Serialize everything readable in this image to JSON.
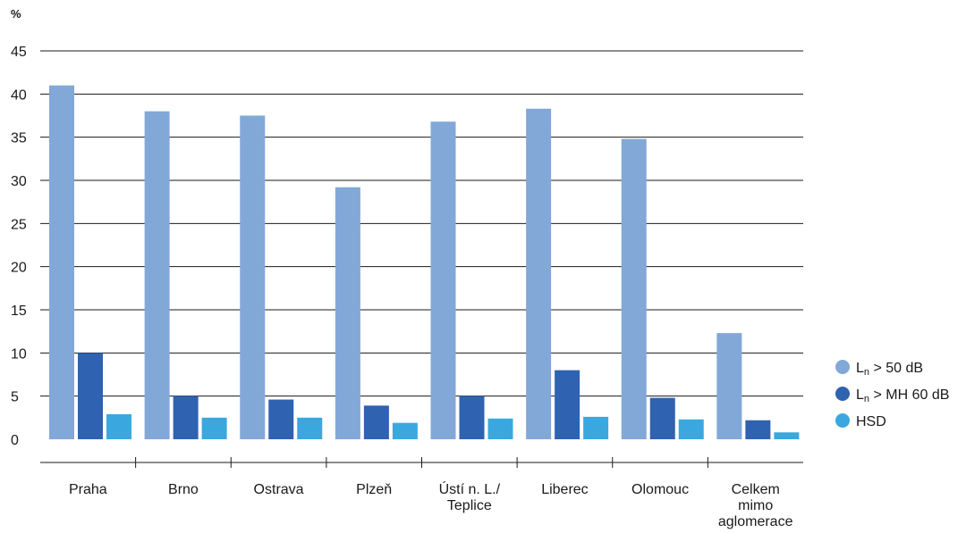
{
  "chart_data": {
    "type": "bar",
    "title": "",
    "xlabel": "",
    "ylabel": "%",
    "ylim": [
      0,
      45
    ],
    "yticks": [
      0,
      5,
      10,
      15,
      20,
      25,
      30,
      35,
      40,
      45
    ],
    "grid": true,
    "legend_position": "right",
    "categories": [
      [
        "Praha"
      ],
      [
        "Brno"
      ],
      [
        "Ostrava"
      ],
      [
        "Plzeň"
      ],
      [
        "Ústí n. L./",
        "Teplice"
      ],
      [
        "Liberec"
      ],
      [
        "Olomouc"
      ],
      [
        "Celkem",
        "mimo",
        "aglomerace"
      ]
    ],
    "series": [
      {
        "name": "Ln > 50 dB",
        "legend_base": "L",
        "legend_sub": "n",
        "legend_rest": " > 50 dB",
        "color": "#82a8d8",
        "values": [
          41.0,
          38.0,
          37.5,
          29.2,
          36.8,
          38.3,
          34.8,
          12.3
        ]
      },
      {
        "name": "Ln > MH 60 dB",
        "legend_base": "L",
        "legend_sub": "n",
        "legend_rest": " > MH 60 dB",
        "color": "#2f62b0",
        "values": [
          10.0,
          5.0,
          4.6,
          3.9,
          5.0,
          8.0,
          4.8,
          2.2
        ]
      },
      {
        "name": "HSD",
        "legend_base": "HSD",
        "legend_sub": "",
        "legend_rest": "",
        "color": "#3aa8df",
        "values": [
          2.9,
          2.5,
          2.5,
          1.9,
          2.4,
          2.6,
          2.3,
          0.8
        ]
      }
    ]
  }
}
